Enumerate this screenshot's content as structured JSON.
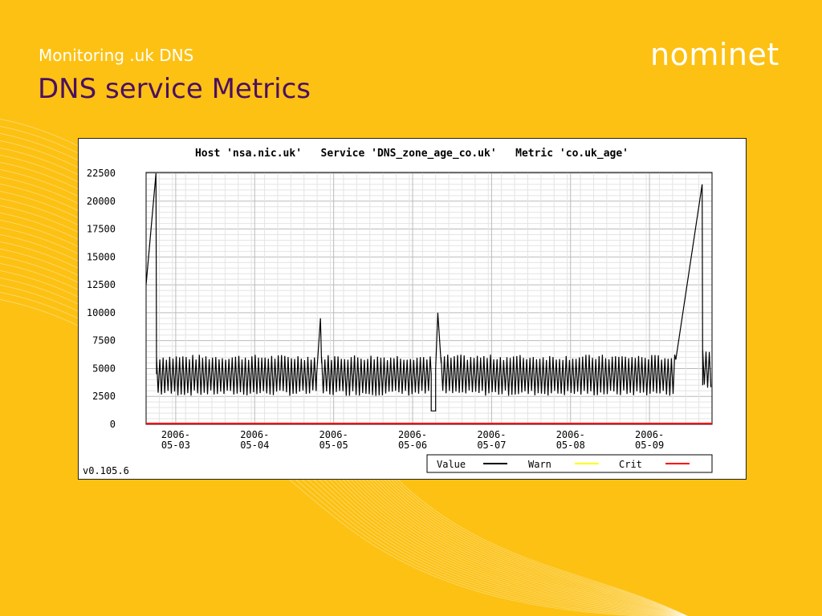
{
  "slide": {
    "subtitle": "Monitoring .uk DNS",
    "title": "DNS service Metrics",
    "logo_text": "nominet"
  },
  "colors": {
    "background": "#fcc113",
    "title": "#4b1060",
    "value_line": "#000000",
    "warn_line": "#ffff00",
    "crit_line": "#ff0000"
  },
  "chart_data": {
    "type": "line",
    "title": "Host 'nsa.nic.uk'   Service 'DNS_zone_age_co.uk'   Metric 'co.uk_age'",
    "version": "v0.105.6",
    "xlim": [
      "2006-05-02T15:00",
      "2006-05-09T19:00"
    ],
    "ylim": [
      0,
      22500
    ],
    "y_ticks": [
      "22500",
      "20000",
      "17500",
      "15000",
      "12500",
      "10000",
      "7500",
      "5000",
      "2500",
      "0"
    ],
    "x_ticks": [
      {
        "date": "2006-05-03",
        "line1": "2006-",
        "line2": "05-03"
      },
      {
        "date": "2006-05-04",
        "line1": "2006-",
        "line2": "05-04"
      },
      {
        "date": "2006-05-05",
        "line1": "2006-",
        "line2": "05-05"
      },
      {
        "date": "2006-05-06",
        "line1": "2006-",
        "line2": "05-06"
      },
      {
        "date": "2006-05-07",
        "line1": "2006-",
        "line2": "05-07"
      },
      {
        "date": "2006-05-08",
        "line1": "2006-",
        "line2": "05-08"
      },
      {
        "date": "2006-05-09",
        "line1": "2006-",
        "line2": "05-09"
      }
    ],
    "grid": true,
    "legend_position": "bottom-right",
    "series": [
      {
        "name": "Value",
        "color": "#000000",
        "segments": [
          {
            "kind": "ramp",
            "points": [
              [
                "2006-05-02T15:00",
                12500
              ],
              [
                "2006-05-02T18:00",
                22500
              ]
            ]
          },
          {
            "kind": "drop",
            "points": [
              [
                "2006-05-02T18:00",
                22500
              ],
              [
                "2006-05-02T18:10",
                4500
              ]
            ]
          },
          {
            "kind": "oscillation",
            "start": "2006-05-02T18:10",
            "end": "2006-05-04T18:50",
            "low": 2800,
            "high": 6000,
            "period_hours": 1
          },
          {
            "kind": "spike",
            "points": [
              [
                "2006-05-04T18:50",
                4500
              ],
              [
                "2006-05-04T20:00",
                9500
              ],
              [
                "2006-05-04T20:20",
                5500
              ]
            ]
          },
          {
            "kind": "oscillation",
            "start": "2006-05-04T20:20",
            "end": "2006-05-06T05:40",
            "low": 2800,
            "high": 6000,
            "period_hours": 1
          },
          {
            "kind": "dip",
            "points": [
              [
                "2006-05-06T05:40",
                4500
              ],
              [
                "2006-05-06T05:40",
                1200
              ],
              [
                "2006-05-06T07:00",
                1200
              ],
              [
                "2006-05-06T07:00",
                5000
              ],
              [
                "2006-05-06T07:40",
                10000
              ],
              [
                "2006-05-06T08:40",
                5500
              ]
            ]
          },
          {
            "kind": "oscillation",
            "start": "2006-05-06T08:40",
            "end": "2006-05-09T08:00",
            "low": 2800,
            "high": 6000,
            "period_hours": 1
          },
          {
            "kind": "ramp",
            "points": [
              [
                "2006-05-09T08:00",
                5800
              ],
              [
                "2006-05-09T16:00",
                21500
              ]
            ]
          },
          {
            "kind": "drop",
            "points": [
              [
                "2006-05-09T16:00",
                21500
              ],
              [
                "2006-05-09T16:10",
                3500
              ]
            ]
          },
          {
            "kind": "oscillation",
            "start": "2006-05-09T16:10",
            "end": "2006-05-09T19:00",
            "low": 3500,
            "high": 6500,
            "period_hours": 1
          }
        ]
      },
      {
        "name": "Warn",
        "color": "#ffff00",
        "values": []
      },
      {
        "name": "Crit",
        "color": "#ff0000",
        "values": [
          0,
          0
        ]
      }
    ],
    "legend": [
      {
        "label": "Value",
        "color": "#000000"
      },
      {
        "label": "Warn",
        "color": "#ffff00"
      },
      {
        "label": "Crit",
        "color": "#ff0000"
      }
    ]
  }
}
